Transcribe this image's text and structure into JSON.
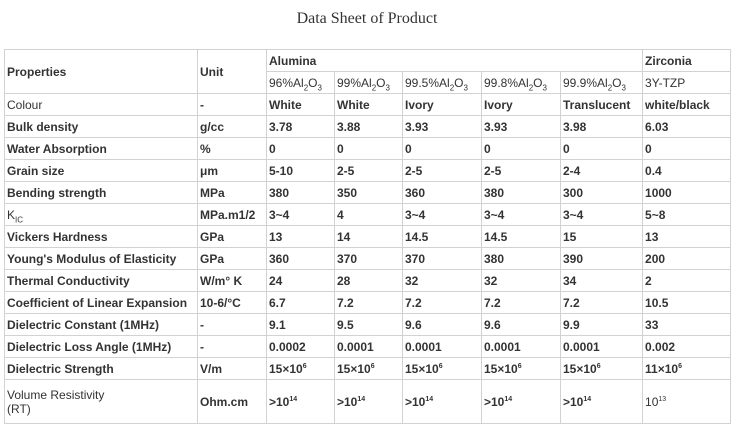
{
  "title": "Data Sheet of Product",
  "header": {
    "properties": "Properties",
    "unit": "Unit",
    "alumina": "Alumina",
    "zirconia": "Zirconia"
  },
  "grades": [
    {
      "main": "96%Al",
      "s1": "2",
      "mid": "O",
      "s2": "3"
    },
    {
      "main": "99%Al",
      "s1": "2",
      "mid": "O",
      "s2": "3"
    },
    {
      "main": "99.5%Al",
      "s1": "2",
      "mid": "O",
      "s2": "3"
    },
    {
      "main": "99.8%Al",
      "s1": "2",
      "mid": "O",
      "s2": "3"
    },
    {
      "main": "99.9%Al",
      "s1": "2",
      "mid": "O",
      "s2": "3"
    }
  ],
  "zirconia_grade": "3Y-TZP",
  "rows": [
    {
      "prop": "Colour",
      "bold": false,
      "unit": "-",
      "vals": [
        "White",
        "White",
        "Ivory",
        "Ivory",
        "Translucent",
        "white/black"
      ]
    },
    {
      "prop": "Bulk density",
      "bold": true,
      "unit": "g/cc",
      "vals": [
        "3.78",
        "3.88",
        "3.93",
        "3.93",
        "3.98",
        "6.03"
      ]
    },
    {
      "prop": "Water Absorption",
      "bold": true,
      "unit": "%",
      "vals": [
        "0",
        "0",
        "0",
        "0",
        "0",
        "0"
      ]
    },
    {
      "prop": "Grain size",
      "bold": true,
      "unit": "μm",
      "vals": [
        "5-10",
        "2-5",
        "2-5",
        "2-5",
        "2-4",
        "0.4"
      ]
    },
    {
      "prop": "Bending strength",
      "bold": true,
      "unit": "MPa",
      "vals": [
        "380",
        "350",
        "360",
        "380",
        "300",
        "1000"
      ]
    },
    {
      "prop": "K",
      "prop_sub": "IC",
      "bold": false,
      "unit": "MPa.m1/2",
      "vals": [
        "3~4",
        "4",
        "3~4",
        "3~4",
        "3~4",
        "5~8"
      ]
    },
    {
      "prop": "Vickers Hardness",
      "bold": true,
      "unit": "GPa",
      "vals": [
        "13",
        "14",
        "14.5",
        "14.5",
        "15",
        "13"
      ]
    },
    {
      "prop": "Young's Modulus of Elasticity",
      "bold": true,
      "unit": "GPa",
      "vals": [
        "360",
        "370",
        "370",
        "380",
        "390",
        "200"
      ]
    },
    {
      "prop": "Thermal Conductivity",
      "bold": true,
      "unit": "W/m° K",
      "vals": [
        "24",
        "28",
        "32",
        "32",
        "34",
        "2"
      ]
    },
    {
      "prop": "Coefficient of Linear Expansion",
      "bold": true,
      "unit": "10-6/°C",
      "vals": [
        "6.7",
        "7.2",
        "7.2",
        "7.2",
        "7.2",
        "10.5"
      ]
    },
    {
      "prop": "Dielectric Constant (1MHz)",
      "bold": true,
      "unit": "-",
      "vals": [
        "9.1",
        "9.5",
        "9.6",
        "9.6",
        "9.9",
        "33"
      ]
    },
    {
      "prop": "Dielectric Loss Angle (1MHz)",
      "bold": true,
      "unit": "-",
      "vals": [
        "0.0002",
        "0.0001",
        "0.0001",
        "0.0001",
        "0.0001",
        "0.002"
      ]
    }
  ],
  "strength_row": {
    "prop": "Dielectric Strength",
    "unit": "V/m",
    "vals": [
      {
        "base": "15×10",
        "exp": "6"
      },
      {
        "base": "15×10",
        "exp": "6"
      },
      {
        "base": "15×10",
        "exp": "6"
      },
      {
        "base": "15×10",
        "exp": "6"
      },
      {
        "base": "15×10",
        "exp": "6"
      },
      {
        "base": "11×10",
        "exp": "6"
      }
    ]
  },
  "resistivity_row": {
    "prop_line1": "Volume Resistivity",
    "prop_line2": "(RT)",
    "unit": "Ohm.cm",
    "vals": [
      {
        "base": ">10",
        "exp": "14"
      },
      {
        "base": ">10",
        "exp": "14"
      },
      {
        "base": ">10",
        "exp": "14"
      },
      {
        "base": ">10",
        "exp": "14"
      },
      {
        "base": ">10",
        "exp": "14"
      },
      {
        "base": "10",
        "exp": "13"
      }
    ]
  }
}
